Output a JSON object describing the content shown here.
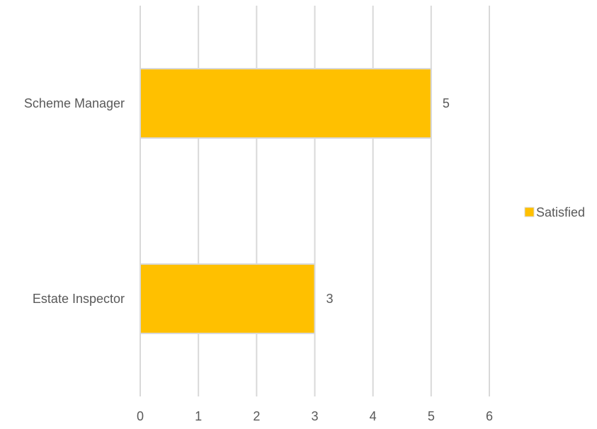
{
  "chart_data": {
    "type": "bar",
    "orientation": "horizontal",
    "categories": [
      "Scheme Manager",
      "Estate Inspector"
    ],
    "series": [
      {
        "name": "Satisfied",
        "values": [
          5,
          3
        ],
        "color": "#FFC000"
      }
    ],
    "data_labels": [
      "5",
      "3"
    ],
    "xlim": [
      0,
      6
    ],
    "x_ticks": [
      "0",
      "1",
      "2",
      "3",
      "4",
      "5",
      "6"
    ],
    "grid": true,
    "legend_position": "right",
    "colors": {
      "bar_fill": "#FFC000",
      "bar_stroke": "#D9D9D9",
      "grid": "#D9D9D9",
      "text": "#595959"
    }
  }
}
